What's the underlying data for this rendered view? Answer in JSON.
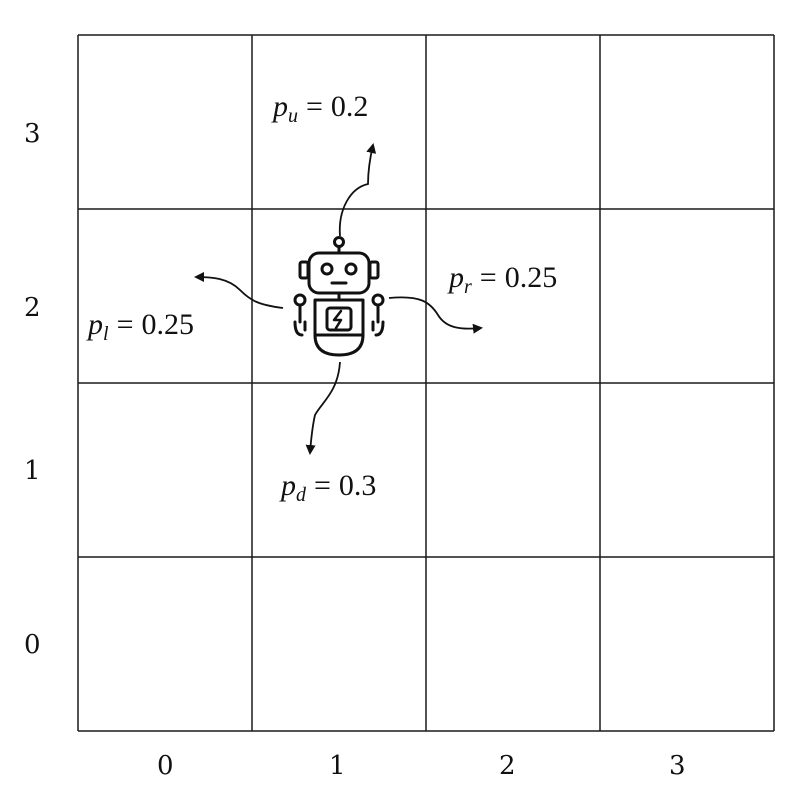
{
  "grid": {
    "rows": 4,
    "cols": 4,
    "row_labels": [
      "3",
      "2",
      "1",
      "0"
    ],
    "col_labels": [
      "0",
      "1",
      "2",
      "3"
    ]
  },
  "agent": {
    "icon": "robot-icon",
    "cell": [
      1,
      2
    ]
  },
  "transitions": {
    "up": {
      "symbol": "p",
      "sub": "u",
      "eq": "=",
      "value": "0.2"
    },
    "right": {
      "symbol": "p",
      "sub": "r",
      "eq": "=",
      "value": "0.25"
    },
    "left": {
      "symbol": "p",
      "sub": "l",
      "eq": "=",
      "value": "0.25"
    },
    "down": {
      "symbol": "p",
      "sub": "d",
      "eq": "=",
      "value": "0.3"
    }
  },
  "colors": {
    "line": "#1a1a1a",
    "background": "#ffffff"
  }
}
